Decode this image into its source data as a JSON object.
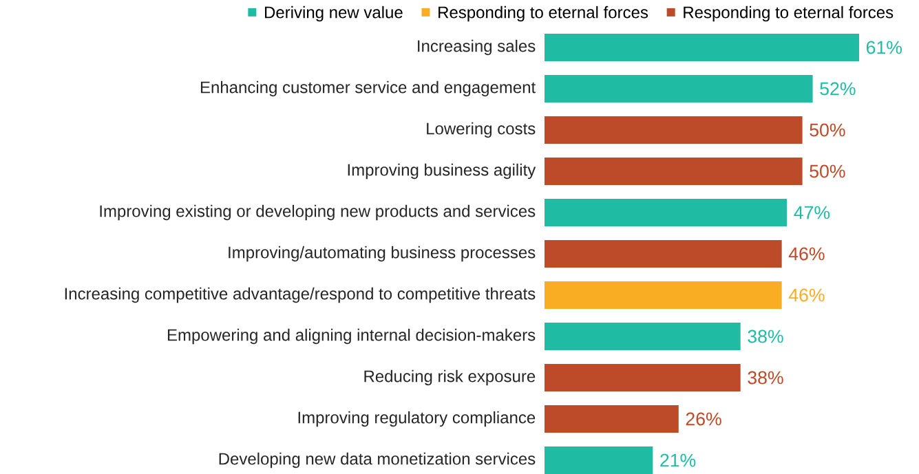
{
  "chart_data": {
    "type": "bar",
    "orientation": "horizontal",
    "legend": "top",
    "categories": [
      "Increasing sales",
      "Enhancing customer service and engagement",
      "Lowering costs",
      "Improving business agility",
      "Improving existing or developing new products and services",
      "Improving/automating business processes",
      "Increasing competitive advantage/respond to competitive threats",
      "Empowering and aligning internal decision-makers",
      "Reducing risk exposure",
      "Improving regulatory compliance",
      "Developing new data monetization services"
    ],
    "series": [
      {
        "name": "Deriving new value",
        "color": "#1fbca3",
        "values": [
          61,
          52,
          null,
          null,
          47,
          null,
          null,
          38,
          null,
          null,
          21
        ],
        "value_labels": [
          "61%",
          "52%",
          null,
          null,
          "47%",
          null,
          null,
          "38%",
          null,
          null,
          "21%"
        ]
      },
      {
        "name": "Responding to eternal forces",
        "color": "#f9ad22",
        "values": [
          null,
          null,
          null,
          null,
          null,
          null,
          46,
          null,
          null,
          null,
          null
        ],
        "value_labels": [
          null,
          null,
          null,
          null,
          null,
          null,
          "46%",
          null,
          null,
          null,
          null
        ]
      },
      {
        "name": "Responding to eternal forces",
        "color": "#bd4a28",
        "values": [
          null,
          null,
          50,
          50,
          null,
          46,
          null,
          null,
          38,
          26,
          null
        ],
        "value_labels": [
          null,
          null,
          "50%",
          "50%",
          null,
          "46%",
          null,
          null,
          "38%",
          "26%",
          null
        ]
      }
    ]
  }
}
